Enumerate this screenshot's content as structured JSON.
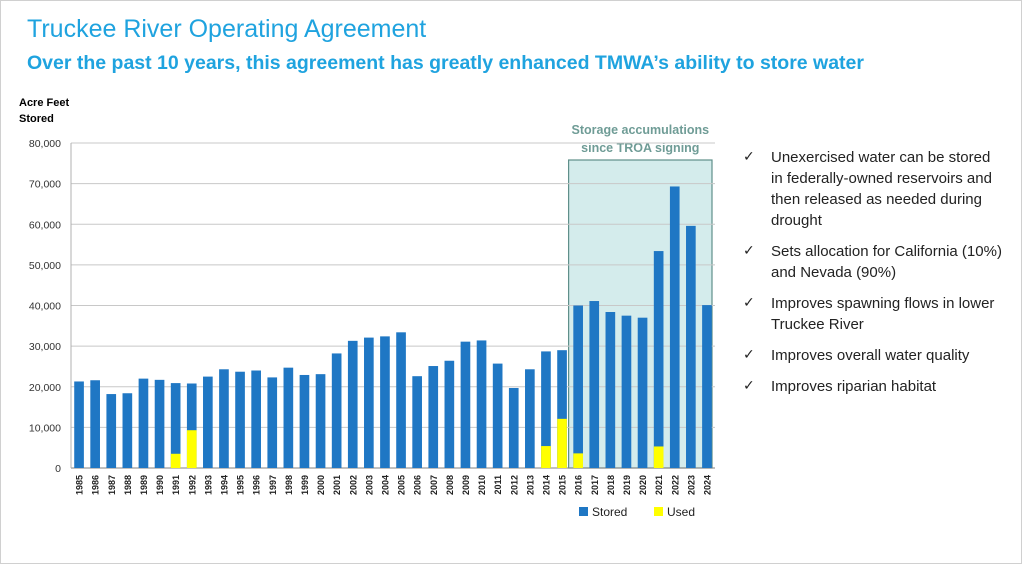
{
  "header": {
    "title": "Truckee River Operating Agreement",
    "subtitle": "Over the past 10 years, this agreement has greatly enhanced TMWA’s ability to store water"
  },
  "chart_data": {
    "type": "bar",
    "ylabel_line1": "Acre Feet",
    "ylabel_line2": "Stored",
    "ylim": [
      0,
      80000
    ],
    "yticks": [
      "0",
      "10,000",
      "20,000",
      "30,000",
      "40,000",
      "50,000",
      "60,000",
      "70,000",
      "80,000"
    ],
    "grid": true,
    "categories": [
      "1985",
      "1986",
      "1987",
      "1988",
      "1989",
      "1990",
      "1991",
      "1992",
      "1993",
      "1994",
      "1995",
      "1996",
      "1997",
      "1998",
      "1999",
      "2000",
      "2001",
      "2002",
      "2003",
      "2004",
      "2005",
      "2006",
      "2007",
      "2008",
      "2009",
      "2010",
      "2011",
      "2012",
      "2013",
      "2014",
      "2015",
      "2016",
      "2017",
      "2018",
      "2019",
      "2020",
      "2021",
      "2022",
      "2023",
      "2024"
    ],
    "series": [
      {
        "name": "Stored",
        "color": "#1f77c4",
        "values": [
          21300,
          21600,
          18200,
          18400,
          22000,
          21700,
          20900,
          20800,
          22500,
          24300,
          23700,
          24000,
          22300,
          24700,
          22900,
          23100,
          28200,
          31300,
          32100,
          32400,
          33400,
          22600,
          25100,
          26400,
          31100,
          31400,
          25700,
          19700,
          24300,
          28700,
          29000,
          40000,
          41100,
          38400,
          37500,
          37000,
          53400,
          69300,
          59600,
          40100
        ]
      },
      {
        "name": "Used",
        "color": "#ffff00",
        "values": [
          0,
          0,
          0,
          0,
          0,
          0,
          3500,
          9300,
          0,
          0,
          0,
          0,
          0,
          0,
          0,
          0,
          0,
          0,
          0,
          0,
          0,
          0,
          0,
          0,
          0,
          0,
          0,
          0,
          0,
          5400,
          12100,
          3600,
          0,
          0,
          0,
          0,
          5300,
          0,
          0,
          0
        ]
      }
    ],
    "annotation": {
      "line1": "Storage accumulations",
      "line2": "since TROA signing",
      "start": "2016",
      "end": "2024"
    },
    "legend": {
      "stored": "Stored",
      "used": "Used",
      "placement": "bottom"
    }
  },
  "bullets": [
    "Unexercised water can be stored in federally-owned reservoirs and then released as needed during drought",
    "Sets allocation for California (10%) and Nevada (90%)",
    "Improves spawning flows in lower Truckee River",
    "Improves overall water quality",
    "Improves riparian habitat"
  ],
  "check_glyph": "✓"
}
